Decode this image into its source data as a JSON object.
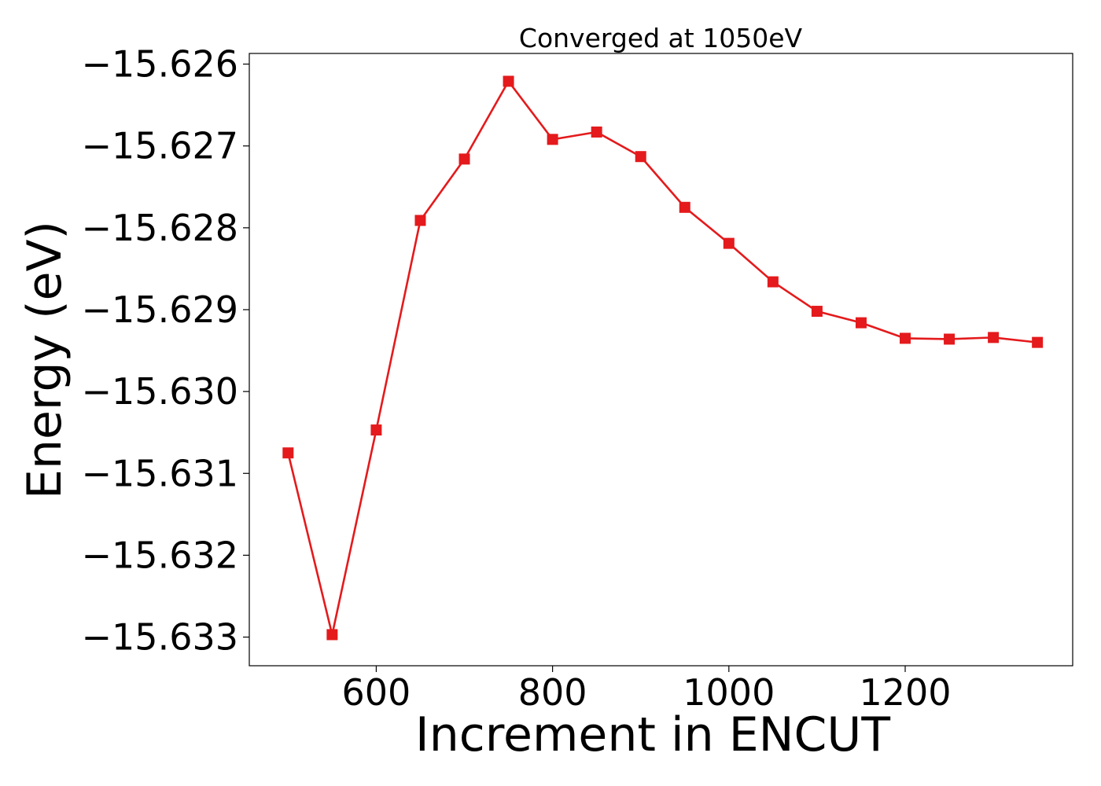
{
  "chart_data": {
    "type": "line",
    "title": "Converged at 1050eV",
    "xlabel": "Increment in ENCUT",
    "ylabel": "Energy (eV)",
    "xlim": [
      456,
      1390
    ],
    "ylim": [
      -15.63335,
      -15.62587
    ],
    "x_ticks": [
      600,
      800,
      1000,
      1200
    ],
    "y_ticks": [
      -15.626,
      -15.627,
      -15.628,
      -15.629,
      -15.63,
      -15.631,
      -15.632,
      -15.633
    ],
    "y_tick_labels": [
      "−15.626",
      "−15.627",
      "−15.628",
      "−15.629",
      "−15.630",
      "−15.631",
      "−15.632",
      "−15.633"
    ],
    "grid": false,
    "legend": "none",
    "series": [
      {
        "color": "#e41a1c",
        "marker": "square",
        "x": [
          500,
          550,
          600,
          650,
          700,
          750,
          800,
          850,
          900,
          950,
          1000,
          1050,
          1100,
          1150,
          1200,
          1250,
          1300,
          1350
        ],
        "y": [
          -15.63075,
          -15.63297,
          -15.63047,
          -15.62791,
          -15.62716,
          -15.62621,
          -15.62692,
          -15.62683,
          -15.62713,
          -15.62775,
          -15.62819,
          -15.62866,
          -15.62902,
          -15.62916,
          -15.62935,
          -15.62936,
          -15.62934,
          -15.6294
        ]
      }
    ]
  }
}
